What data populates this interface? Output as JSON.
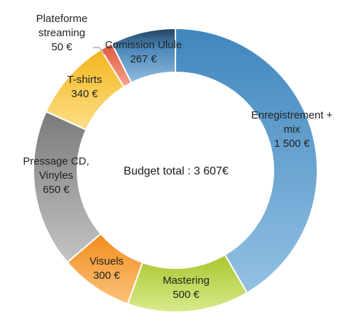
{
  "chart_data": {
    "type": "pie",
    "variant": "donut",
    "center_label": "Budget total : 3 607€",
    "slices": [
      {
        "name": "Enregistrement + mix",
        "label_lines": [
          "Enregistrement +",
          "mix"
        ],
        "value": 1500,
        "value_label": "1 500 €",
        "color": "#5b9bd5"
      },
      {
        "name": "Mastering",
        "label_lines": [
          "Mastering"
        ],
        "value": 500,
        "value_label": "500 €",
        "color": "#9bbb3a"
      },
      {
        "name": "Visuels",
        "label_lines": [
          "Visuels"
        ],
        "value": 300,
        "value_label": "300 €",
        "color": "#f5a03a"
      },
      {
        "name": "Pressage CD, Vinyles",
        "label_lines": [
          "Pressage CD,",
          "Vinyles"
        ],
        "value": 650,
        "value_label": "650 €",
        "color": "#9e9e9e"
      },
      {
        "name": "T-shirts",
        "label_lines": [
          "T-shirts"
        ],
        "value": 340,
        "value_label": "340 €",
        "color": "#f7c948"
      },
      {
        "name": "Plateforme streaming",
        "label_lines": [
          "Plateforme",
          "streaming"
        ],
        "value": 50,
        "value_label": "50 €",
        "color": "#e8735a"
      },
      {
        "name": "Comission Ulule",
        "label_lines": [
          "Comission Ulule"
        ],
        "value": 267,
        "value_label": "267 €",
        "color": "#6a9ec8"
      }
    ]
  }
}
